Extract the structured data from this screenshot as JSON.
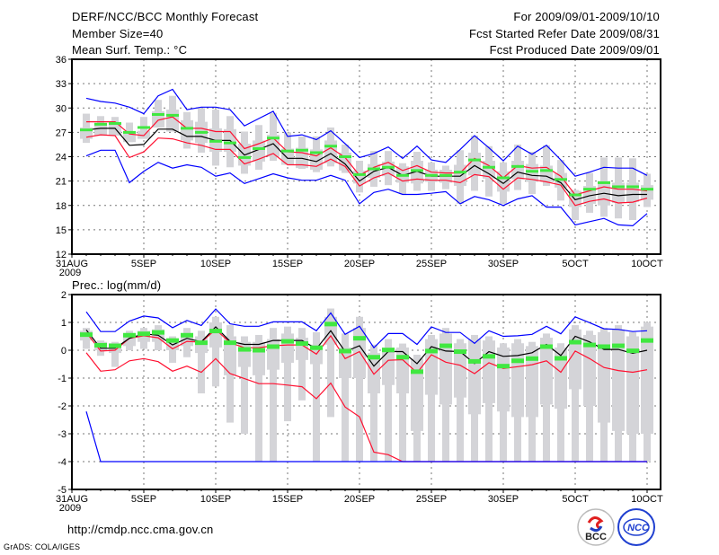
{
  "header": {
    "title": "DERF/NCC/BCC Monthly Forecast",
    "member_size": "Member Size=40",
    "variable_temp": "Mean Surf. Temp.: °C",
    "period": "For 2009/09/01-2009/10/10",
    "started": "Fcst Started Refer Date 2009/08/31",
    "produced": "Fcst Produced Date 2009/09/01"
  },
  "footer": {
    "url": "http://cmdp.ncc.cma.gov.cn",
    "grads": "GrADS: COLA/IGES",
    "logo_bcc": "BCC",
    "logo_ncc": "NCC"
  },
  "colors": {
    "mean": "#000000",
    "percentile": "#ff1030",
    "extreme": "#0000ff",
    "obs": "#40e840",
    "spread": "#d4d4d8"
  },
  "chart_data": [
    {
      "type": "line",
      "title": "Mean Surf. Temp.: °C",
      "x_days": [
        1,
        2,
        3,
        4,
        5,
        6,
        7,
        8,
        9,
        10,
        11,
        12,
        13,
        14,
        15,
        16,
        17,
        18,
        19,
        20,
        21,
        22,
        23,
        24,
        25,
        26,
        27,
        28,
        29,
        30,
        31,
        32,
        33,
        34,
        35,
        36,
        37,
        38,
        39,
        40
      ],
      "xlim": [
        0,
        40
      ],
      "xticks": [
        {
          "day": 0,
          "label": "31AUG"
        },
        {
          "day": 5,
          "label": "5SEP"
        },
        {
          "day": 10,
          "label": "10SEP"
        },
        {
          "day": 15,
          "label": "15SEP"
        },
        {
          "day": 20,
          "label": "20SEP"
        },
        {
          "day": 25,
          "label": "25SEP"
        },
        {
          "day": 30,
          "label": "30SEP"
        },
        {
          "day": 35,
          "label": "5OCT"
        },
        {
          "day": 40,
          "label": "10OCT"
        }
      ],
      "year_label": "2009",
      "ylim": [
        12,
        36
      ],
      "yticks": [
        12,
        15,
        18,
        21,
        24,
        27,
        30,
        33,
        36
      ],
      "grid": true,
      "series": [
        {
          "name": "max",
          "color_key": "extreme",
          "values": [
            31.2,
            30.8,
            30.6,
            30.1,
            29.3,
            31.5,
            32.3,
            29.8,
            30.1,
            30.1,
            29.8,
            27.8,
            28.7,
            29.6,
            26.5,
            26.7,
            26.1,
            27.2,
            25.6,
            23.9,
            24.4,
            25.2,
            23.8,
            25.3,
            23.6,
            23.3,
            24.9,
            26.6,
            25.1,
            23.5,
            25.3,
            24.3,
            25.4,
            23.6,
            21.6,
            22.1,
            22.7,
            22.6,
            22.6,
            21.7
          ]
        },
        {
          "name": "upper",
          "color_key": "percentile",
          "values": [
            28.3,
            28.3,
            28.3,
            26.8,
            26.6,
            28.5,
            28.9,
            27.5,
            27.5,
            27.1,
            27.1,
            25.0,
            25.6,
            26.3,
            24.6,
            24.5,
            24.1,
            25.1,
            23.9,
            21.7,
            22.7,
            23.3,
            22.3,
            22.9,
            22.1,
            22.0,
            22.0,
            23.8,
            22.9,
            21.4,
            22.9,
            22.6,
            22.7,
            21.6,
            19.3,
            19.8,
            20.3,
            20.0,
            20.0,
            19.8
          ]
        },
        {
          "name": "mean",
          "color_key": "mean",
          "values": [
            27.3,
            27.5,
            27.5,
            25.4,
            25.5,
            27.4,
            27.4,
            26.5,
            26.5,
            26.0,
            26.0,
            24.2,
            24.9,
            25.6,
            23.8,
            23.8,
            23.4,
            24.4,
            23.1,
            21.0,
            22.2,
            22.7,
            21.7,
            22.2,
            21.6,
            21.6,
            21.6,
            22.9,
            21.9,
            20.7,
            22.1,
            21.7,
            21.6,
            20.8,
            18.7,
            19.2,
            19.5,
            19.2,
            19.35,
            19.35
          ]
        },
        {
          "name": "lower",
          "color_key": "percentile",
          "values": [
            26.4,
            26.7,
            26.6,
            23.9,
            24.6,
            26.3,
            26.2,
            25.7,
            25.4,
            24.9,
            24.9,
            23.1,
            23.7,
            24.4,
            23.0,
            23.0,
            22.8,
            23.7,
            22.8,
            20.4,
            21.4,
            22.0,
            21.0,
            21.25,
            21.1,
            21.1,
            20.8,
            21.8,
            21.55,
            20.0,
            21.4,
            21.2,
            20.9,
            20.5,
            18.0,
            18.5,
            18.8,
            18.3,
            18.4,
            18.9
          ]
        },
        {
          "name": "min",
          "color_key": "extreme",
          "values": [
            24.1,
            24.8,
            24.8,
            20.8,
            22.2,
            23.3,
            22.6,
            23.0,
            22.7,
            21.6,
            22.0,
            20.7,
            21.3,
            21.9,
            21.4,
            21.1,
            21.1,
            21.7,
            21.1,
            18.2,
            19.6,
            20.0,
            19.35,
            19.35,
            19.5,
            19.7,
            18.2,
            19.1,
            18.7,
            18.0,
            18.8,
            19.2,
            17.8,
            17.8,
            15.6,
            16.0,
            16.4,
            15.6,
            15.5,
            17.0
          ]
        }
      ],
      "observed": [
        27.3,
        28.0,
        28.1,
        27.0,
        27.6,
        29.2,
        29.1,
        27.5,
        27.0,
        25.9,
        25.7,
        23.9,
        25.0,
        26.3,
        24.7,
        24.8,
        24.5,
        25.3,
        24.0,
        21.8,
        22.5,
        22.7,
        21.7,
        22.3,
        21.7,
        21.7,
        22.1,
        23.6,
        22.7,
        21.4,
        22.8,
        22.2,
        22.3,
        21.2,
        19.3,
        20.0,
        20.8,
        20.3,
        20.3,
        20.0
      ],
      "spread_high": [
        29.3,
        29.0,
        28.9,
        28.2,
        28.9,
        31.0,
        31.5,
        29.5,
        30.0,
        29.8,
        29.0,
        27.1,
        27.9,
        29.4,
        27.0,
        26.5,
        26.5,
        27.6,
        25.5,
        23.5,
        24.7,
        24.7,
        23.2,
        24.6,
        23.3,
        22.9,
        24.8,
        26.6,
        25.3,
        23.3,
        25.5,
        24.6,
        25.4,
        23.6,
        19.9,
        22.0,
        23.9,
        23.9,
        23.8,
        21.9
      ],
      "spread_low": [
        25.7,
        26.6,
        26.7,
        25.8,
        26.2,
        27.6,
        27.1,
        25.0,
        24.5,
        22.9,
        22.7,
        21.9,
        22.4,
        23.5,
        23.0,
        22.5,
        22.1,
        22.8,
        22.0,
        19.6,
        20.3,
        20.5,
        19.4,
        19.8,
        19.8,
        20.0,
        18.2,
        19.8,
        19.1,
        18.2,
        19.9,
        19.4,
        20.4,
        18.6,
        16.2,
        17.1,
        16.6,
        16.4,
        16.2,
        17.8
      ],
      "box_high": [
        27.6,
        28.0,
        28.0,
        26.9,
        27.2,
        29.6,
        29.8,
        28.5,
        28.3,
        27.5,
        27.4,
        25.6,
        26.0,
        26.7,
        25.0,
        25.1,
        24.9,
        26.0,
        24.5,
        22.3,
        23.1,
        23.4,
        22.8,
        23.5,
        22.4,
        22.4,
        23.0,
        24.5,
        23.5,
        22.2,
        23.5,
        23.1,
        22.9,
        22.0,
        19.8,
        20.4,
        21.0,
        20.8,
        20.8,
        20.5
      ],
      "box_low": [
        26.2,
        26.6,
        26.6,
        25.8,
        26.2,
        27.6,
        27.1,
        26.0,
        25.7,
        24.6,
        24.6,
        22.9,
        23.4,
        24.0,
        23.0,
        22.6,
        22.4,
        23.2,
        22.3,
        20.7,
        21.4,
        21.6,
        20.8,
        20.7,
        20.9,
        20.8,
        20.4,
        21.7,
        21.3,
        19.7,
        21.2,
        20.9,
        20.9,
        20.2,
        17.8,
        18.2,
        18.0,
        18.3,
        18.4,
        18.7
      ]
    },
    {
      "type": "line",
      "title": "Prec.: log(mm/d)",
      "x_days": [
        1,
        2,
        3,
        4,
        5,
        6,
        7,
        8,
        9,
        10,
        11,
        12,
        13,
        14,
        15,
        16,
        17,
        18,
        19,
        20,
        21,
        22,
        23,
        24,
        25,
        26,
        27,
        28,
        29,
        30,
        31,
        32,
        33,
        34,
        35,
        36,
        37,
        38,
        39,
        40
      ],
      "xlim": [
        0,
        40
      ],
      "xticks": [
        {
          "day": 0,
          "label": "31AUG"
        },
        {
          "day": 5,
          "label": "5SEP"
        },
        {
          "day": 10,
          "label": "10SEP"
        },
        {
          "day": 15,
          "label": "15SEP"
        },
        {
          "day": 20,
          "label": "20SEP"
        },
        {
          "day": 25,
          "label": "25SEP"
        },
        {
          "day": 30,
          "label": "30SEP"
        },
        {
          "day": 35,
          "label": "5OCT"
        },
        {
          "day": 40,
          "label": "10OCT"
        }
      ],
      "year_label": "2009",
      "ylim": [
        -5,
        2
      ],
      "yticks": [
        -5,
        -4,
        -3,
        -2,
        -1,
        0,
        1,
        2
      ],
      "grid": true,
      "series": [
        {
          "name": "max",
          "color_key": "extreme",
          "values": [
            1.38,
            0.67,
            0.67,
            1.05,
            1.23,
            1.16,
            0.81,
            1.07,
            0.89,
            1.48,
            0.95,
            0.86,
            0.86,
            1.02,
            1.02,
            1.02,
            0.7,
            1.34,
            0.57,
            0.86,
            0.09,
            0.6,
            0.6,
            0.21,
            0.84,
            0.64,
            0.64,
            0.25,
            0.7,
            0.5,
            0.52,
            0.57,
            0.86,
            0.59,
            1.2,
            0.99,
            0.77,
            0.75,
            0.67,
            0.7
          ]
        },
        {
          "name": "upper",
          "color_key": "percentile",
          "values": [
            0.64,
            -0.03,
            0.0,
            0.43,
            0.52,
            0.45,
            0.05,
            0.32,
            0.29,
            0.75,
            0.27,
            0.09,
            0.09,
            0.16,
            0.19,
            0.19,
            -0.14,
            0.52,
            -0.3,
            -0.05,
            -0.86,
            -0.36,
            -0.34,
            -0.81,
            -0.16,
            -0.43,
            -0.54,
            -0.84,
            -0.45,
            -0.65,
            -0.59,
            -0.52,
            -0.38,
            -0.79,
            -0.03,
            -0.3,
            -0.62,
            -0.73,
            -0.79,
            -0.7
          ]
        },
        {
          "name": "mean",
          "color_key": "mean",
          "values": [
            0.73,
            0.07,
            0.07,
            0.43,
            0.59,
            0.54,
            0.19,
            0.43,
            0.3,
            0.84,
            0.32,
            0.21,
            0.21,
            0.35,
            0.35,
            0.35,
            0.05,
            0.7,
            -0.05,
            0.16,
            -0.57,
            -0.05,
            -0.05,
            -0.48,
            0.13,
            -0.03,
            -0.05,
            -0.48,
            -0.05,
            -0.22,
            -0.19,
            -0.09,
            0.21,
            -0.19,
            0.5,
            0.3,
            0.03,
            0.03,
            -0.11,
            0.0
          ]
        },
        {
          "name": "lower",
          "color_key": "percentile",
          "values": [
            -0.09,
            -0.75,
            -0.7,
            -0.38,
            -0.3,
            -0.41,
            -0.75,
            -0.57,
            -0.79,
            -0.3,
            -0.84,
            -1.02,
            -1.2,
            -1.2,
            -1.25,
            -1.31,
            -1.74,
            -1.18,
            -2.04,
            -2.39,
            -3.66,
            -3.75,
            -4,
            -4,
            -4,
            -4,
            -4,
            -4,
            -4,
            -4,
            -4,
            -4,
            -4,
            -4,
            -4,
            -4,
            -4,
            -4,
            -4,
            -4
          ]
        },
        {
          "name": "min",
          "color_key": "extreme",
          "values": [
            -2.2,
            -4,
            -4,
            -4,
            -4,
            -4,
            -4,
            -4,
            -4,
            -4,
            -4,
            -4,
            -4,
            -4,
            -4,
            -4,
            -4,
            -4,
            -4,
            -4,
            -4,
            -4,
            -4,
            -4,
            -4,
            -4,
            -4,
            -4,
            -4,
            -4,
            -4,
            -4,
            -4,
            -4,
            -4,
            -4,
            -4,
            -4,
            -4,
            -4
          ]
        }
      ],
      "observed": [
        0.56,
        0.18,
        0.16,
        0.54,
        0.59,
        0.64,
        0.35,
        0.54,
        0.27,
        0.69,
        0.27,
        0.03,
        0.0,
        0.13,
        0.32,
        0.24,
        0.09,
        0.94,
        -0.03,
        0.43,
        -0.25,
        0.01,
        -0.25,
        -0.77,
        -0.03,
        0.16,
        -0.05,
        -0.4,
        -0.22,
        -0.57,
        -0.38,
        -0.3,
        0.13,
        -0.29,
        0.29,
        0.19,
        0.13,
        0.16,
        -0.02,
        0.35
      ],
      "spread_high": [
        0.8,
        0.35,
        0.3,
        0.7,
        0.8,
        0.9,
        0.5,
        0.8,
        0.7,
        1.2,
        0.9,
        0.5,
        0.55,
        0.8,
        0.85,
        0.8,
        0.65,
        1.5,
        0.6,
        1.2,
        0.2,
        0.4,
        0.24,
        -0.16,
        0.55,
        0.8,
        0.4,
        0.55,
        0.5,
        0.25,
        0.4,
        0.3,
        0.6,
        0.25,
        0.9,
        0.7,
        0.8,
        0.9,
        0.65,
        1.0
      ],
      "spread_low": [
        0.05,
        -0.2,
        -0.6,
        0.0,
        0.05,
        0.0,
        -0.45,
        -0.25,
        -1.55,
        -1.3,
        -2.6,
        -3.0,
        -4,
        -4,
        -2.55,
        -1.8,
        -4,
        -2.4,
        -4,
        -4,
        -4,
        -4,
        -4,
        -4,
        -4,
        -4,
        -4,
        -4,
        -4,
        -4,
        -4,
        -4,
        -4,
        -4,
        -4,
        -4,
        -4,
        -4,
        -4,
        -4
      ],
      "box_high": [
        0.7,
        0.3,
        0.25,
        0.6,
        0.7,
        0.75,
        0.4,
        0.6,
        0.5,
        1.0,
        0.5,
        0.3,
        0.3,
        0.4,
        0.6,
        0.45,
        0.2,
        1.2,
        0.1,
        0.8,
        -0.1,
        0.1,
        0.1,
        -0.3,
        0.4,
        0.6,
        0.25,
        0.4,
        0.35,
        0.1,
        0.25,
        0.15,
        0.45,
        0.1,
        0.75,
        0.55,
        0.65,
        0.75,
        0.5,
        0.85
      ],
      "box_low": [
        0.35,
        0.0,
        -0.1,
        0.15,
        0.3,
        0.3,
        0.0,
        0.15,
        -0.1,
        0.1,
        -0.9,
        -0.6,
        -0.9,
        -0.7,
        -0.45,
        -0.35,
        -0.5,
        0.2,
        -1.0,
        -1.0,
        -1.55,
        -1.25,
        -1.55,
        -2.9,
        -1.6,
        -1.95,
        -1.7,
        -2.3,
        -1.9,
        -2.2,
        -2.4,
        -2.4,
        -1.95,
        -2.1,
        -1.4,
        -2.0,
        -2.6,
        -2.9,
        -3.0,
        -3.0
      ]
    }
  ]
}
